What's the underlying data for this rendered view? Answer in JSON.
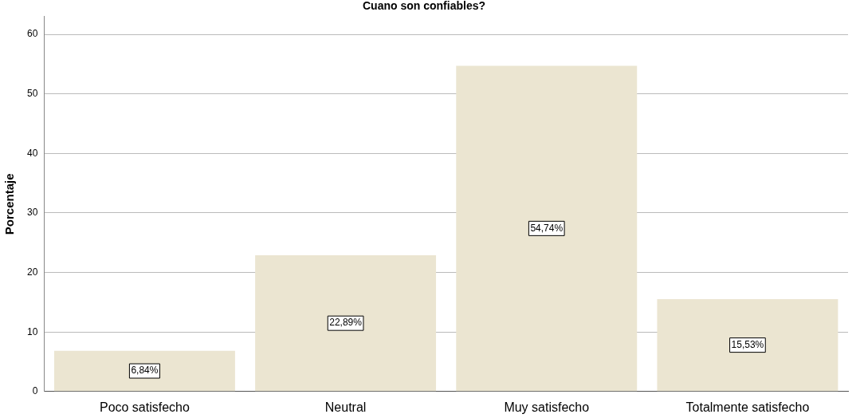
{
  "chart_data": {
    "type": "bar",
    "title": "Cuano son confiables?",
    "ylabel": "Porcentaje",
    "categories": [
      "Poco satisfecho",
      "Neutral",
      "Muy satisfecho",
      "Totalmente satisfecho"
    ],
    "values": [
      6.84,
      22.89,
      54.74,
      15.53
    ],
    "value_labels": [
      "6,84%",
      "22,89%",
      "54,74%",
      "15,53%"
    ],
    "color": "#ebe5d1",
    "ylim": [
      0,
      63
    ],
    "yticks": [
      0,
      10,
      20,
      30,
      40,
      50,
      60
    ],
    "grid": "y",
    "legend": false
  }
}
